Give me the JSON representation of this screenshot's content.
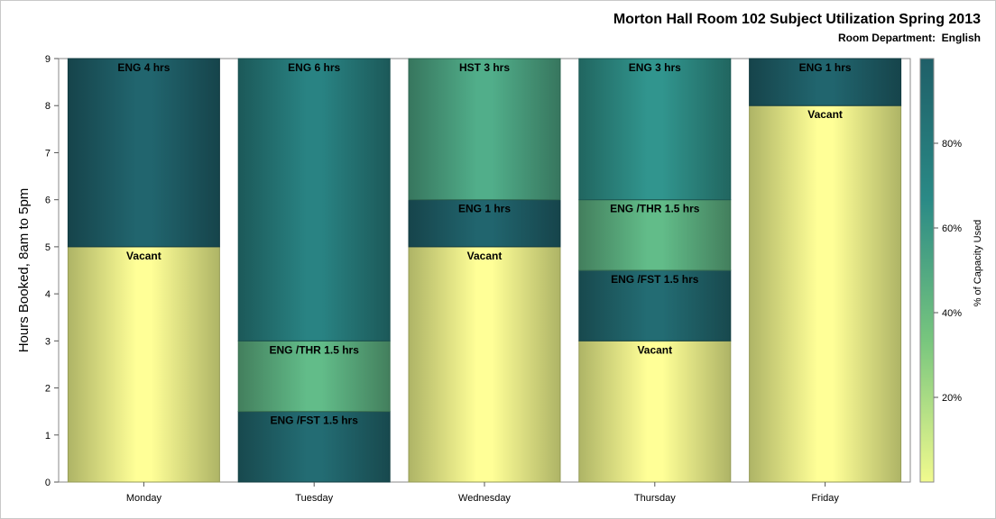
{
  "chart_data": {
    "type": "bar",
    "stacked": true,
    "title": "Morton Hall Room 102 Subject Utilization Spring 2013",
    "subtitle_label": "Room Department:",
    "subtitle_value": "English",
    "ylabel": "Hours Booked, 8am to 5pm",
    "xlabel": "",
    "ylim": [
      0,
      9
    ],
    "yticks": [
      "0",
      "1",
      "2",
      "3",
      "4",
      "5",
      "6",
      "7",
      "8",
      "9"
    ],
    "categories": [
      "Monday",
      "Tuesday",
      "Wednesday",
      "Thursday",
      "Friday"
    ],
    "bars": [
      {
        "day": "Monday",
        "segments": [
          {
            "label": "Vacant",
            "start": 0,
            "end": 5,
            "pct": 0
          },
          {
            "label": "ENG 4 hrs",
            "start": 5,
            "end": 9,
            "pct": 100
          }
        ]
      },
      {
        "day": "Tuesday",
        "segments": [
          {
            "label": "ENG /FST 1.5 hrs",
            "start": 0,
            "end": 1.5,
            "pct": 95
          },
          {
            "label": "ENG /THR 1.5 hrs",
            "start": 1.5,
            "end": 3,
            "pct": 45
          },
          {
            "label": "ENG 6 hrs",
            "start": 3,
            "end": 9,
            "pct": 78
          }
        ]
      },
      {
        "day": "Wednesday",
        "segments": [
          {
            "label": "Vacant",
            "start": 0,
            "end": 5,
            "pct": 0
          },
          {
            "label": "ENG 1 hrs",
            "start": 5,
            "end": 6,
            "pct": 100
          },
          {
            "label": "HST 3 hrs",
            "start": 6,
            "end": 9,
            "pct": 52
          }
        ]
      },
      {
        "day": "Thursday",
        "segments": [
          {
            "label": "Vacant",
            "start": 0,
            "end": 3,
            "pct": 0
          },
          {
            "label": "ENG /FST 1.5 hrs",
            "start": 3,
            "end": 4.5,
            "pct": 95
          },
          {
            "label": "ENG /THR 1.5 hrs",
            "start": 4.5,
            "end": 6,
            "pct": 45
          },
          {
            "label": "ENG 3 hrs",
            "start": 6,
            "end": 9,
            "pct": 65
          }
        ]
      },
      {
        "day": "Friday",
        "segments": [
          {
            "label": "Vacant",
            "start": 0,
            "end": 8,
            "pct": 0
          },
          {
            "label": "ENG 1 hrs",
            "start": 8,
            "end": 9,
            "pct": 100
          }
        ]
      }
    ],
    "colorbar": {
      "label": "% of Capacity Used",
      "range": [
        0,
        100
      ],
      "ticks": [
        {
          "value": 20,
          "label": "20%"
        },
        {
          "value": 40,
          "label": "40%"
        },
        {
          "value": 60,
          "label": "60%"
        },
        {
          "value": 80,
          "label": "80%"
        }
      ],
      "colors": [
        "#f1fa8e",
        "#78c67e",
        "#2a8a86",
        "#1f5f68"
      ]
    },
    "grid": false,
    "legend": "right"
  }
}
